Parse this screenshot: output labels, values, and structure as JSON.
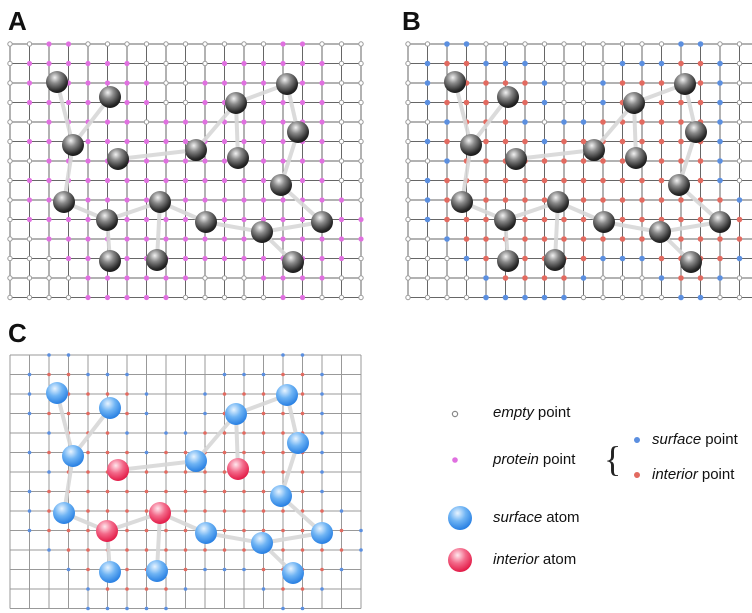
{
  "panels": [
    {
      "label": "A"
    },
    {
      "label": "B"
    },
    {
      "label": "C"
    }
  ],
  "legend": {
    "empty_point": {
      "emph": "empty",
      "rest": "point"
    },
    "protein_point": {
      "emph": "protein",
      "rest": "point"
    },
    "surface_point": {
      "emph": "surface",
      "rest": "point"
    },
    "interior_point": {
      "emph": "interior",
      "rest": "point"
    },
    "surface_atom": {
      "emph": "surface",
      "rest": "atom"
    },
    "interior_atom": {
      "emph": "interior",
      "rest": "atom"
    }
  }
}
